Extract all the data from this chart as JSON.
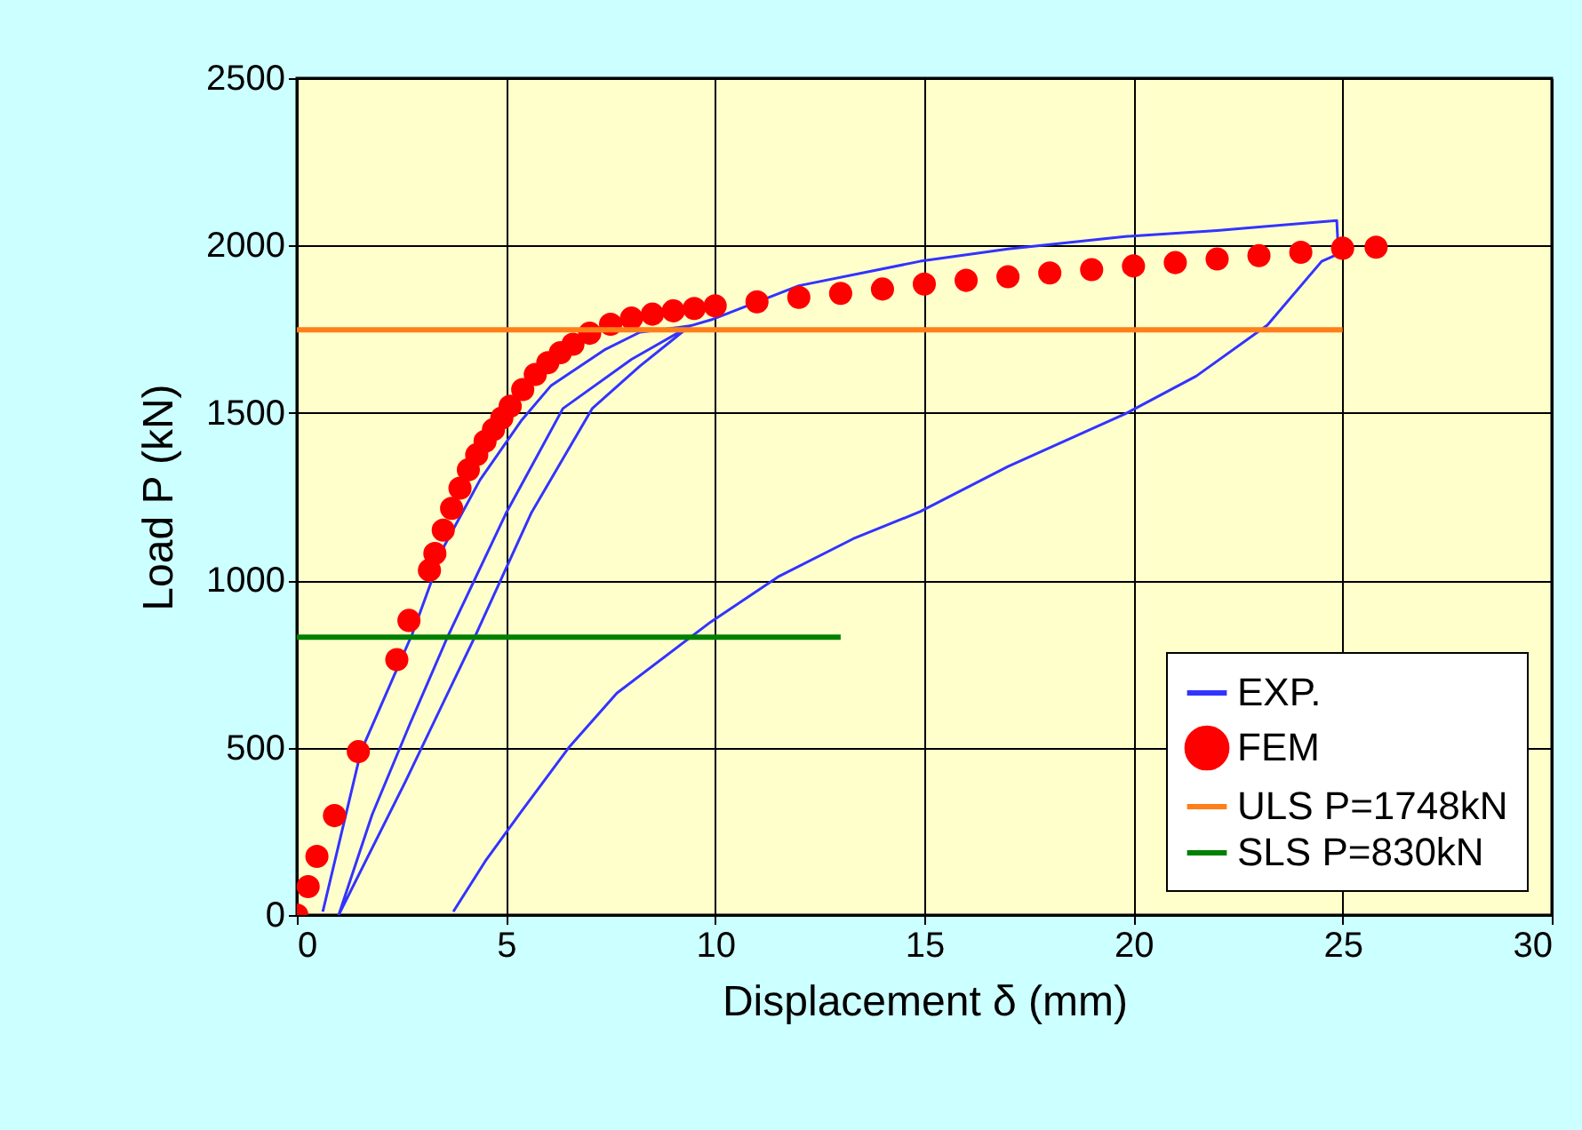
{
  "chart_data": {
    "type": "line",
    "xlabel": "Displacement δ (mm)",
    "ylabel": "Load P (kN)",
    "xlim": [
      0,
      30
    ],
    "xticks": [
      0,
      5,
      10,
      15,
      20,
      25,
      30
    ],
    "ylim": [
      0,
      2500
    ],
    "yticks": [
      0,
      500,
      1000,
      1500,
      2000,
      2500
    ],
    "grid": true,
    "legend": "bottom right",
    "series": [
      {
        "name": "EXP.",
        "color": "#3333ff",
        "x": [
          0.62,
          1.53,
          2.76,
          3.53,
          4.38,
          5.36,
          6.08,
          7.35,
          8.2,
          9.4,
          8.2,
          7.06,
          5.6,
          4.25,
          2.6,
          1.0,
          1.8,
          2.7,
          3.6,
          5.0,
          6.36,
          8.0,
          9.4,
          9.9,
          12.0,
          14.9,
          17.0,
          19.8,
          22.0,
          24.86,
          24.9,
          24.5,
          23.2,
          21.5,
          19.8,
          17.0,
          14.9,
          13.3,
          11.5,
          9.9,
          7.65,
          6.5,
          5.36,
          4.5,
          3.74
        ],
        "values": [
          10,
          488,
          840,
          1104,
          1300,
          1476,
          1582,
          1688,
          1741,
          1760,
          1640,
          1513,
          1200,
          830,
          400,
          0,
          300,
          570,
          830,
          1200,
          1513,
          1660,
          1760,
          1778,
          1880,
          1953,
          1990,
          2027,
          2045,
          2075,
          1975,
          1953,
          1762,
          1610,
          1497,
          1340,
          1205,
          1124,
          1010,
          876,
          663,
          500,
          308,
          160,
          10
        ]
      },
      {
        "name": "FEM",
        "type": "scatter",
        "marker": "circle",
        "color": "#ff0000",
        "x": [
          0,
          0.27,
          0.48,
          0.9,
          1.47,
          2.39,
          2.68,
          3.17,
          3.3,
          3.5,
          3.7,
          3.9,
          4.1,
          4.3,
          4.5,
          4.7,
          4.9,
          5.1,
          5.4,
          5.7,
          6.0,
          6.3,
          6.6,
          7.0,
          7.5,
          8.0,
          8.5,
          9.0,
          9.5,
          10,
          11,
          12,
          13,
          14,
          15,
          16,
          17,
          18,
          19,
          20,
          21,
          22,
          23,
          24,
          25,
          25.8
        ],
        "values": [
          0,
          85,
          175,
          297,
          488,
          763,
          880,
          1030,
          1080,
          1150,
          1215,
          1275,
          1330,
          1375,
          1415,
          1450,
          1485,
          1520,
          1570,
          1615,
          1650,
          1680,
          1705,
          1738,
          1765,
          1783,
          1795,
          1805,
          1812,
          1820,
          1832,
          1845,
          1857,
          1870,
          1885,
          1896,
          1907,
          1918,
          1928,
          1939,
          1949,
          1960,
          1970,
          1980,
          1992,
          1995
        ]
      },
      {
        "name": "ULS P=1748kN",
        "type": "line",
        "color": "#ff7f1a",
        "x": [
          0,
          25
        ],
        "values": [
          1748,
          1748
        ]
      },
      {
        "name": "SLS P=830kN",
        "type": "line",
        "color": "#008000",
        "x": [
          0,
          13
        ],
        "values": [
          830,
          830
        ]
      }
    ]
  }
}
